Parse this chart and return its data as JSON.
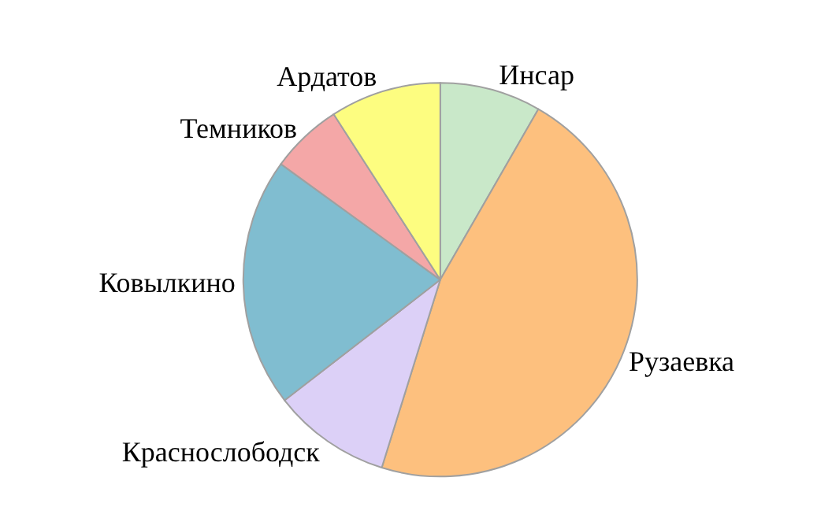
{
  "chart_data": {
    "type": "pie",
    "categories": [
      "Инсар",
      "Рузаевка",
      "Краснослободск",
      "Ковылкино",
      "Темников",
      "Ардатов"
    ],
    "values": [
      8.3,
      46.5,
      9.7,
      20.5,
      5.9,
      9.1
    ],
    "colors": [
      "#c9e8c9",
      "#fdc07e",
      "#dcd0f7",
      "#80bdd0",
      "#f4a7a7",
      "#fdfd80"
    ]
  }
}
